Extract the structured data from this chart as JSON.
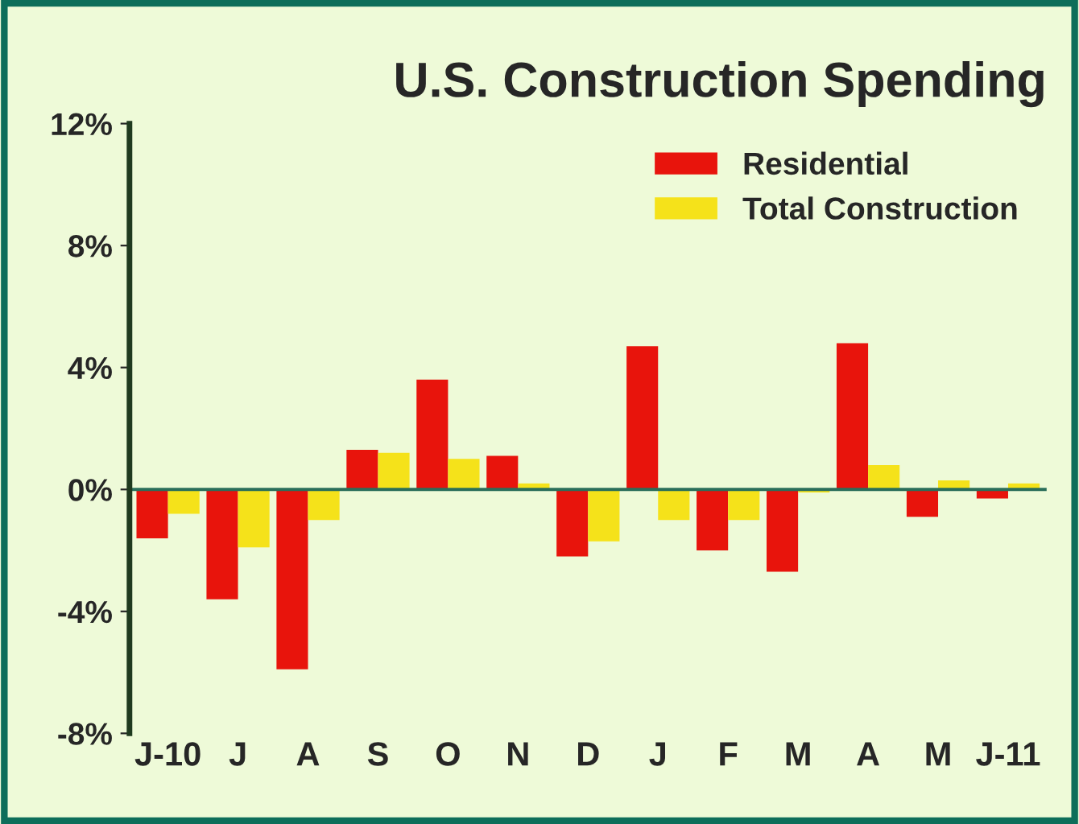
{
  "chart_data": {
    "type": "bar",
    "title": "U.S. Construction Spending",
    "categories": [
      "J-10",
      "J",
      "A",
      "S",
      "O",
      "N",
      "D",
      "J",
      "F",
      "M",
      "A",
      "M",
      "J-11"
    ],
    "series": [
      {
        "name": "Residential",
        "color": "#e8140c",
        "values": [
          -1.6,
          -3.6,
          -5.9,
          1.3,
          3.6,
          1.1,
          -2.2,
          4.7,
          -2.0,
          -2.7,
          4.8,
          -0.9,
          -0.3
        ]
      },
      {
        "name": "Total Construction",
        "color": "#f5e21a",
        "values": [
          -0.8,
          -1.9,
          -1.0,
          1.2,
          1.0,
          0.2,
          -1.7,
          -1.0,
          -1.0,
          -0.1,
          0.8,
          0.3,
          0.2
        ]
      }
    ],
    "ylim": [
      -8,
      12
    ],
    "yticks": [
      {
        "value": -8,
        "label": "-8%"
      },
      {
        "value": -4,
        "label": "-4%"
      },
      {
        "value": 0,
        "label": "0%"
      },
      {
        "value": 4,
        "label": "4%"
      },
      {
        "value": 8,
        "label": "8%"
      },
      {
        "value": 12,
        "label": "12%"
      }
    ],
    "ref_lines": [
      {
        "axis": "y",
        "value": 0,
        "color": "#2a6e5a"
      }
    ],
    "grid": false,
    "legend": "top right"
  }
}
